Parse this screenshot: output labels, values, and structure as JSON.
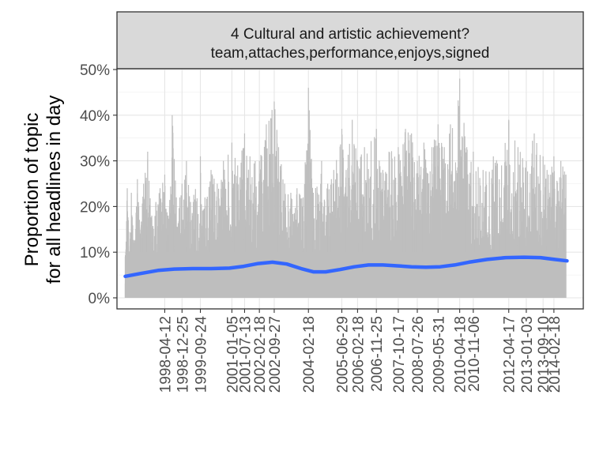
{
  "chart_data": {
    "type": "line",
    "facet_title_line1": "4 Cultural and artistic achievement?",
    "facet_title_line2": "team,attaches,performance,enjoys,signed",
    "ylabel_line1": "Proportion of topic",
    "ylabel_line2": "for all headlines in day",
    "xlabel": "",
    "ylim": [
      0,
      0.5
    ],
    "yticks": [
      {
        "value": 0.0,
        "label": "0%"
      },
      {
        "value": 0.1,
        "label": "10%"
      },
      {
        "value": 0.2,
        "label": "20%"
      },
      {
        "value": 0.3,
        "label": "30%"
      },
      {
        "value": 0.4,
        "label": "40%"
      },
      {
        "value": 0.5,
        "label": "50%"
      }
    ],
    "xlim": [
      "1996-05-01",
      "2015-05-01"
    ],
    "xticks": [
      "1998-04-12",
      "1998-12-25",
      "1999-09-24",
      "2001-01-05",
      "2001-07-13",
      "2002-02-18",
      "2002-09-27",
      "2004-02-18",
      "2005-06-29",
      "2006-02-18",
      "2006-11-25",
      "2007-10-17",
      "2008-07-26",
      "2009-05-31",
      "2010-04-18",
      "2010-11-06",
      "2012-04-17",
      "2013-01-03",
      "2013-09-10",
      "2014-02-18"
    ],
    "grid": true,
    "series": [
      {
        "kind": "daily-proportion",
        "color": "#bebebe",
        "points": [
          [
            "1996-09-01",
            0.09
          ],
          [
            "1996-10-01",
            0.24
          ],
          [
            "1996-11-01",
            0.1
          ],
          [
            "1996-12-01",
            0.23
          ],
          [
            "1997-01-15",
            0.12
          ],
          [
            "1997-03-01",
            0.26
          ],
          [
            "1997-04-15",
            0.14
          ],
          [
            "1997-06-01",
            0.25
          ],
          [
            "1997-08-01",
            0.32
          ],
          [
            "1997-10-01",
            0.18
          ],
          [
            "1997-12-01",
            0.21
          ],
          [
            "1998-02-01",
            0.24
          ],
          [
            "1998-04-12",
            0.27
          ],
          [
            "1998-06-01",
            0.18
          ],
          [
            "1998-08-01",
            0.4
          ],
          [
            "1998-10-01",
            0.22
          ],
          [
            "1998-12-25",
            0.25
          ],
          [
            "1999-03-01",
            0.3
          ],
          [
            "1999-05-01",
            0.21
          ],
          [
            "1999-09-24",
            0.31
          ],
          [
            "1999-12-01",
            0.22
          ],
          [
            "2000-03-01",
            0.28
          ],
          [
            "2000-06-01",
            0.25
          ],
          [
            "2000-09-01",
            0.3
          ],
          [
            "2001-01-05",
            0.34
          ],
          [
            "2001-04-01",
            0.29
          ],
          [
            "2001-07-13",
            0.36
          ],
          [
            "2001-10-01",
            0.31
          ],
          [
            "2002-02-18",
            0.3
          ],
          [
            "2002-06-01",
            0.38
          ],
          [
            "2002-09-27",
            0.43
          ],
          [
            "2002-12-01",
            0.33
          ],
          [
            "2003-03-01",
            0.25
          ],
          [
            "2003-06-01",
            0.23
          ],
          [
            "2003-09-01",
            0.24
          ],
          [
            "2003-12-01",
            0.22
          ],
          [
            "2004-02-18",
            0.46
          ],
          [
            "2004-05-01",
            0.23
          ],
          [
            "2004-09-01",
            0.3
          ],
          [
            "2004-12-01",
            0.25
          ],
          [
            "2005-03-01",
            0.28
          ],
          [
            "2005-06-29",
            0.37
          ],
          [
            "2005-09-01",
            0.28
          ],
          [
            "2005-12-01",
            0.39
          ],
          [
            "2006-02-18",
            0.3
          ],
          [
            "2006-06-01",
            0.33
          ],
          [
            "2006-11-25",
            0.37
          ],
          [
            "2007-03-01",
            0.28
          ],
          [
            "2007-06-01",
            0.32
          ],
          [
            "2007-10-17",
            0.33
          ],
          [
            "2008-02-01",
            0.37
          ],
          [
            "2008-05-01",
            0.36
          ],
          [
            "2008-07-26",
            0.3
          ],
          [
            "2008-11-01",
            0.34
          ],
          [
            "2009-03-01",
            0.33
          ],
          [
            "2009-05-31",
            0.38
          ],
          [
            "2009-09-01",
            0.33
          ],
          [
            "2009-12-01",
            0.38
          ],
          [
            "2010-04-18",
            0.48
          ],
          [
            "2010-08-01",
            0.33
          ],
          [
            "2010-11-06",
            0.32
          ],
          [
            "2011-04-01",
            0.28
          ],
          [
            "2011-09-01",
            0.31
          ],
          [
            "2012-01-01",
            0.29
          ],
          [
            "2012-04-17",
            0.39
          ],
          [
            "2012-09-01",
            0.33
          ],
          [
            "2013-01-03",
            0.3
          ],
          [
            "2013-05-01",
            0.36
          ],
          [
            "2013-09-10",
            0.31
          ],
          [
            "2013-12-01",
            0.27
          ],
          [
            "2014-02-18",
            0.31
          ],
          [
            "2014-06-01",
            0.3
          ],
          [
            "2014-08-15",
            0.27
          ]
        ]
      },
      {
        "kind": "smooth-trend",
        "color": "#3366ff",
        "points": [
          [
            "1996-09-01",
            0.047
          ],
          [
            "1997-04-01",
            0.053
          ],
          [
            "1998-01-01",
            0.06
          ],
          [
            "1998-09-01",
            0.063
          ],
          [
            "1999-06-01",
            0.064
          ],
          [
            "2000-03-01",
            0.064
          ],
          [
            "2000-12-01",
            0.065
          ],
          [
            "2001-07-01",
            0.069
          ],
          [
            "2002-02-01",
            0.075
          ],
          [
            "2002-09-01",
            0.078
          ],
          [
            "2003-04-01",
            0.074
          ],
          [
            "2003-11-01",
            0.064
          ],
          [
            "2004-05-01",
            0.057
          ],
          [
            "2004-11-01",
            0.057
          ],
          [
            "2005-06-01",
            0.062
          ],
          [
            "2006-01-01",
            0.068
          ],
          [
            "2006-08-01",
            0.072
          ],
          [
            "2007-03-01",
            0.072
          ],
          [
            "2007-10-01",
            0.07
          ],
          [
            "2008-05-01",
            0.068
          ],
          [
            "2008-12-01",
            0.067
          ],
          [
            "2009-07-01",
            0.068
          ],
          [
            "2010-02-01",
            0.072
          ],
          [
            "2010-09-01",
            0.078
          ],
          [
            "2011-06-01",
            0.084
          ],
          [
            "2012-03-01",
            0.088
          ],
          [
            "2012-12-01",
            0.089
          ],
          [
            "2013-08-01",
            0.088
          ],
          [
            "2014-03-01",
            0.084
          ],
          [
            "2014-09-01",
            0.081
          ]
        ]
      }
    ]
  }
}
